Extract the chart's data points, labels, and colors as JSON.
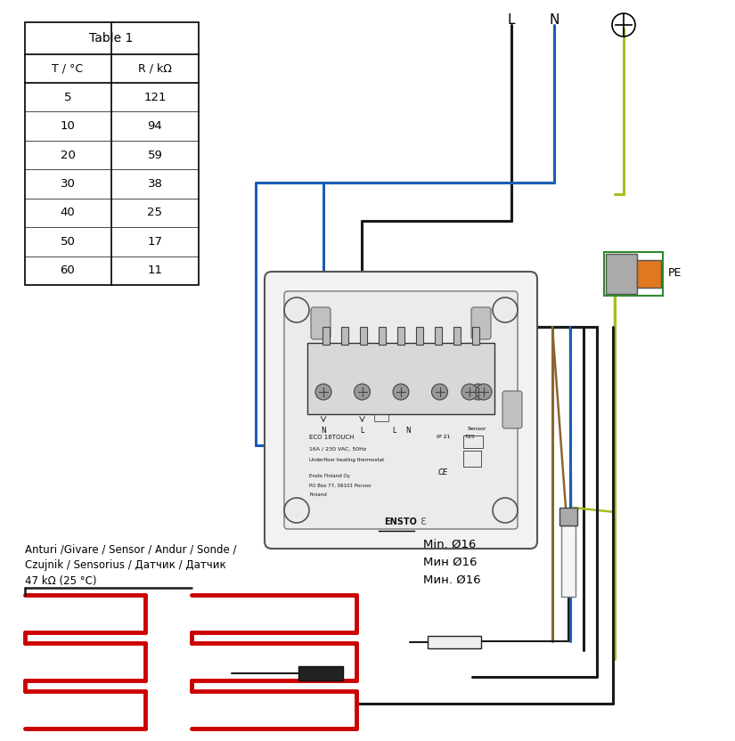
{
  "bg_color": "#ffffff",
  "table": {
    "title": "Table 1",
    "headers": [
      "T / °C",
      "R / kΩ"
    ],
    "rows": [
      [
        "5",
        "121"
      ],
      [
        "10",
        "94"
      ],
      [
        "20",
        "59"
      ],
      [
        "30",
        "38"
      ],
      [
        "40",
        "25"
      ],
      [
        "50",
        "17"
      ],
      [
        "60",
        "11"
      ]
    ]
  },
  "sensor_lines": [
    "Anturi /Givare / Sensor / Andur / Sonde /",
    "Czujnik / Sensorius / Датчик / Датчик",
    "47 kΩ (25 °C)"
  ],
  "min_lines": [
    "Min. Ø16",
    "Mин Ø16",
    "Мин. Ø16"
  ],
  "colors": {
    "black": "#1a1a1a",
    "blue": "#1a5eb5",
    "brown": "#8B6530",
    "green_yellow": "#a0c020",
    "green": "#2d8a2d",
    "red": "#cc0000",
    "gray": "#aaaaaa",
    "orange": "#e07820",
    "dark_gray": "#555555",
    "light_gray": "#e8e8e8",
    "mid_gray": "#cccccc"
  }
}
